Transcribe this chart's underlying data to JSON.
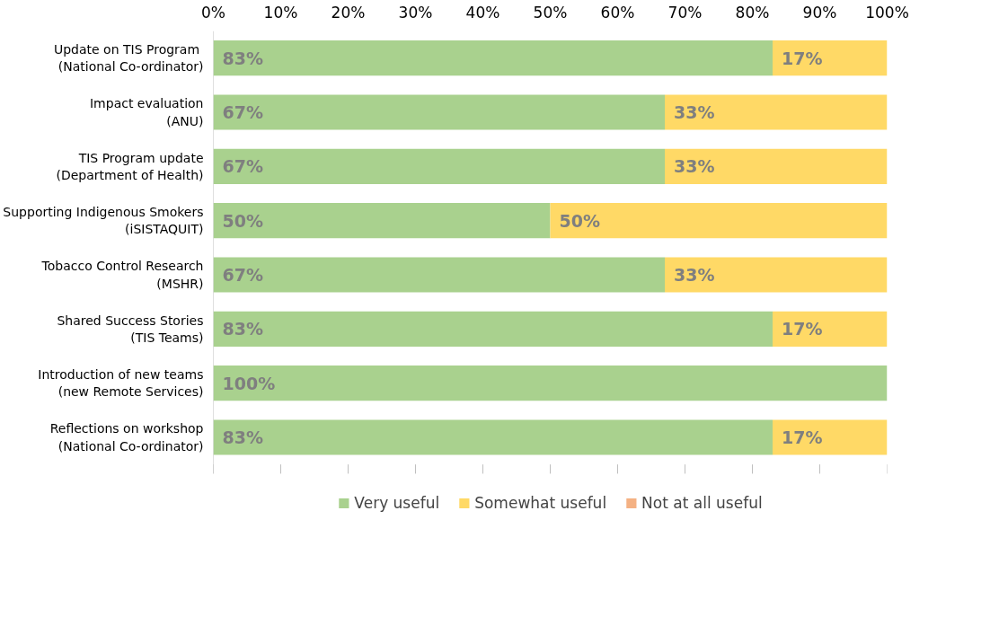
{
  "chart_data": {
    "type": "bar",
    "orientation": "horizontal",
    "stacked": true,
    "categories": [
      "Update on  TIS Program\n(National Co-ordinator)",
      "Impact evaluation\n(ANU)",
      "TIS Program update\n(Department of Health)",
      "Supporting Indigenous Smokers\n(iSISTAQUIT)",
      "Tobacco Control Research\n(MSHR)",
      "Shared Success Stories\n(TIS Teams)",
      "Introduction of new teams\n(new Remote Services)",
      "Reflections on workshop\n(National Co-ordinator)"
    ],
    "series": [
      {
        "name": "Very useful",
        "color": "#a9d18e",
        "values": [
          83,
          67,
          67,
          50,
          67,
          83,
          100,
          83
        ],
        "value_labels": [
          "83%",
          "67%",
          "67%",
          "50%",
          "67%",
          "83%",
          "100%",
          "83%"
        ]
      },
      {
        "name": "Somewhat useful",
        "color": "#ffd966",
        "values": [
          17,
          33,
          33,
          50,
          33,
          17,
          0,
          17
        ],
        "value_labels": [
          "17%",
          "33%",
          "33%",
          "50%",
          "33%",
          "17%",
          null,
          "17%"
        ]
      },
      {
        "name": "Not at all useful",
        "color": "#f4b183",
        "values": [
          0,
          0,
          0,
          0,
          0,
          0,
          0,
          0
        ],
        "value_labels": [
          null,
          null,
          null,
          null,
          null,
          null,
          null,
          null
        ]
      }
    ],
    "xlim": [
      0,
      100
    ],
    "xticks": [
      {
        "value": 0,
        "label": "0%"
      },
      {
        "value": 10,
        "label": "10%"
      },
      {
        "value": 20,
        "label": "20%"
      },
      {
        "value": 30,
        "label": "30%"
      },
      {
        "value": 40,
        "label": "40%"
      },
      {
        "value": 50,
        "label": "50%"
      },
      {
        "value": 60,
        "label": "60%"
      },
      {
        "value": 70,
        "label": "70%"
      },
      {
        "value": 80,
        "label": "80%"
      },
      {
        "value": 90,
        "label": "90%"
      },
      {
        "value": 100,
        "label": "100%"
      }
    ],
    "grid": false,
    "legend": "bottom"
  }
}
